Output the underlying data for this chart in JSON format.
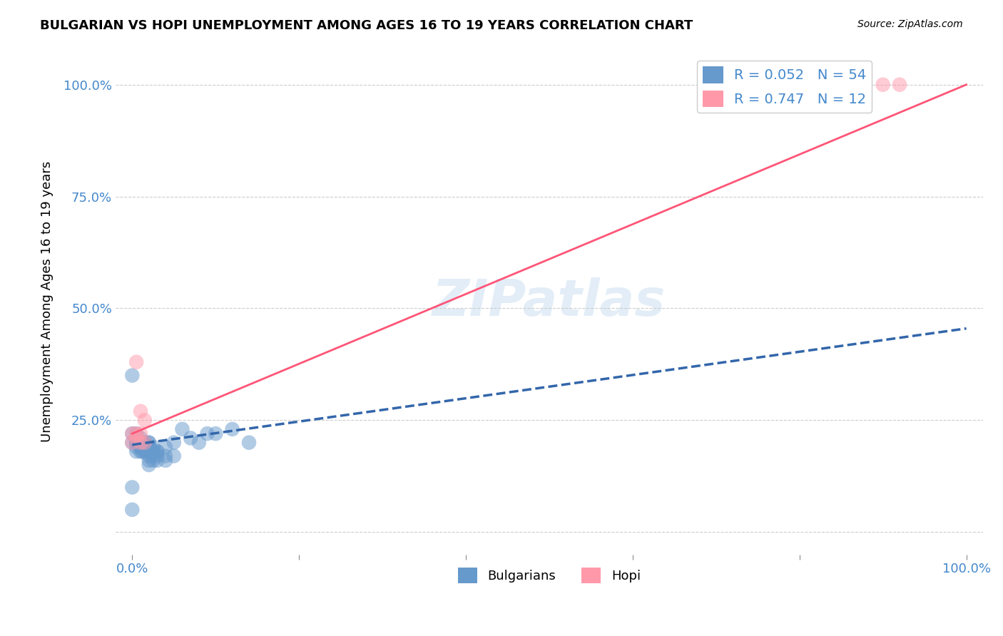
{
  "title": "BULGARIAN VS HOPI UNEMPLOYMENT AMONG AGES 16 TO 19 YEARS CORRELATION CHART",
  "source": "Source: ZipAtlas.com",
  "xlabel_bottom": "",
  "ylabel": "Unemployment Among Ages 16 to 19 years",
  "x_ticks": [
    0.0,
    0.2,
    0.4,
    0.6,
    0.8,
    1.0
  ],
  "x_tick_labels": [
    "0.0%",
    "",
    "",
    "",
    "",
    "100.0%"
  ],
  "y_ticks": [
    0.0,
    0.25,
    0.5,
    0.75,
    1.0
  ],
  "y_tick_labels": [
    "",
    "25.0%",
    "50.0%",
    "75.0%",
    "100.0%"
  ],
  "xlim": [
    -0.02,
    1.02
  ],
  "ylim": [
    -0.05,
    1.08
  ],
  "legend_labels": [
    "R = 0.052   N = 54",
    "R = 0.747   N = 12"
  ],
  "bottom_legend_labels": [
    "Bulgarians",
    "Hopi"
  ],
  "blue_color": "#6699cc",
  "blue_dark": "#3366aa",
  "pink_color": "#ff99aa",
  "pink_dark": "#ff5577",
  "blue_scatter_x": [
    0.0,
    0.0,
    0.0,
    0.005,
    0.005,
    0.005,
    0.005,
    0.005,
    0.005,
    0.01,
    0.01,
    0.01,
    0.01,
    0.01,
    0.01,
    0.01,
    0.012,
    0.012,
    0.015,
    0.015,
    0.015,
    0.015,
    0.015,
    0.02,
    0.02,
    0.02,
    0.02,
    0.02,
    0.02,
    0.02,
    0.02,
    0.025,
    0.025,
    0.025,
    0.025,
    0.025,
    0.03,
    0.03,
    0.03,
    0.03,
    0.04,
    0.04,
    0.04,
    0.05,
    0.05,
    0.06,
    0.07,
    0.08,
    0.09,
    0.1,
    0.12,
    0.14,
    0.0,
    0.0
  ],
  "blue_scatter_y": [
    0.2,
    0.22,
    0.35,
    0.2,
    0.22,
    0.2,
    0.18,
    0.19,
    0.2,
    0.2,
    0.19,
    0.2,
    0.2,
    0.18,
    0.19,
    0.21,
    0.18,
    0.19,
    0.2,
    0.19,
    0.18,
    0.2,
    0.18,
    0.2,
    0.19,
    0.18,
    0.19,
    0.2,
    0.17,
    0.16,
    0.15,
    0.19,
    0.18,
    0.17,
    0.16,
    0.18,
    0.18,
    0.17,
    0.16,
    0.18,
    0.19,
    0.17,
    0.16,
    0.2,
    0.17,
    0.23,
    0.21,
    0.2,
    0.22,
    0.22,
    0.23,
    0.2,
    0.1,
    0.05
  ],
  "pink_scatter_x": [
    0.0,
    0.0,
    0.005,
    0.005,
    0.005,
    0.01,
    0.01,
    0.01,
    0.015,
    0.015,
    0.9,
    0.92
  ],
  "pink_scatter_y": [
    0.2,
    0.22,
    0.21,
    0.38,
    0.22,
    0.27,
    0.2,
    0.22,
    0.2,
    0.25,
    1.0,
    1.0
  ],
  "blue_line_x": [
    0.0,
    1.0
  ],
  "blue_line_y": [
    0.195,
    0.455
  ],
  "pink_line_x": [
    0.0,
    1.0
  ],
  "pink_line_y": [
    0.22,
    1.0
  ],
  "watermark": "ZIPatlas",
  "background_color": "#ffffff",
  "grid_color": "#cccccc"
}
